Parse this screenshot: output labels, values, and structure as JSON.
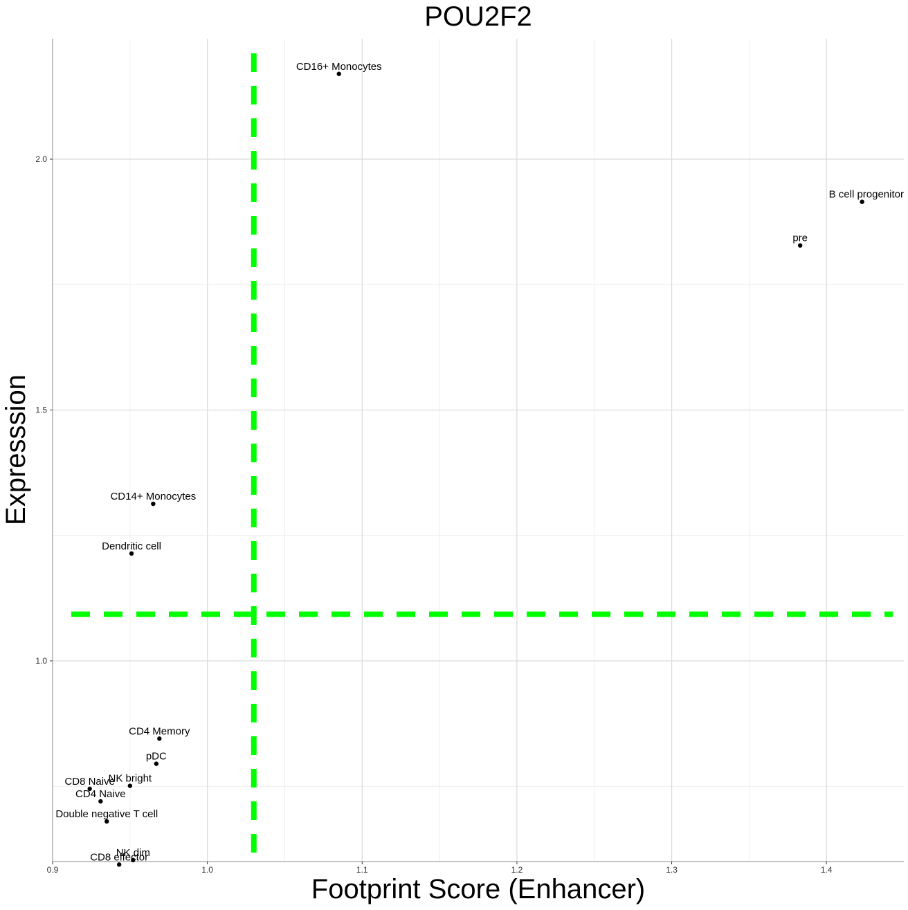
{
  "chart_data": {
    "type": "scatter",
    "title": "POU2F2",
    "xlabel": "Footprint Score (Enhancer)",
    "ylabel": "Expresssion",
    "xlim": [
      0.9,
      1.45
    ],
    "ylim": [
      0.6,
      2.24
    ],
    "x_ticks": [
      0.9,
      1.0,
      1.1,
      1.2,
      1.3,
      1.4
    ],
    "x_tick_labels": [
      "0.9",
      "1.0",
      "1.1",
      "1.2",
      "1.3",
      "1.4"
    ],
    "y_ticks": [
      1.0,
      1.5,
      2.0
    ],
    "y_tick_labels": [
      "1.0",
      "1.5",
      "2.0"
    ],
    "grid": true,
    "reference_lines": {
      "x": 1.03,
      "y": 1.093,
      "color": "#00ff00",
      "style": "dashed"
    },
    "points": [
      {
        "label": "CD16+ Monocytes",
        "x": 1.085,
        "y": 2.17
      },
      {
        "label": "B cell progenitor",
        "x": 1.423,
        "y": 1.915
      },
      {
        "label": "pre",
        "x": 1.383,
        "y": 1.828
      },
      {
        "label": "CD14+ Monocytes",
        "x": 0.965,
        "y": 1.313
      },
      {
        "label": "Dendritic cell",
        "x": 0.951,
        "y": 1.214
      },
      {
        "label": "CD4 Memory",
        "x": 0.969,
        "y": 0.845
      },
      {
        "label": "pDC",
        "x": 0.967,
        "y": 0.795
      },
      {
        "label": "NK bright",
        "x": 0.95,
        "y": 0.751
      },
      {
        "label": "CD8 Naive",
        "x": 0.924,
        "y": 0.745
      },
      {
        "label": "CD4 Naive",
        "x": 0.931,
        "y": 0.72
      },
      {
        "label": "Double negative T cell",
        "x": 0.935,
        "y": 0.68
      },
      {
        "label": "NK dim",
        "x": 0.952,
        "y": 0.603
      },
      {
        "label": "CD8 effector",
        "x": 0.943,
        "y": 0.594
      }
    ]
  }
}
